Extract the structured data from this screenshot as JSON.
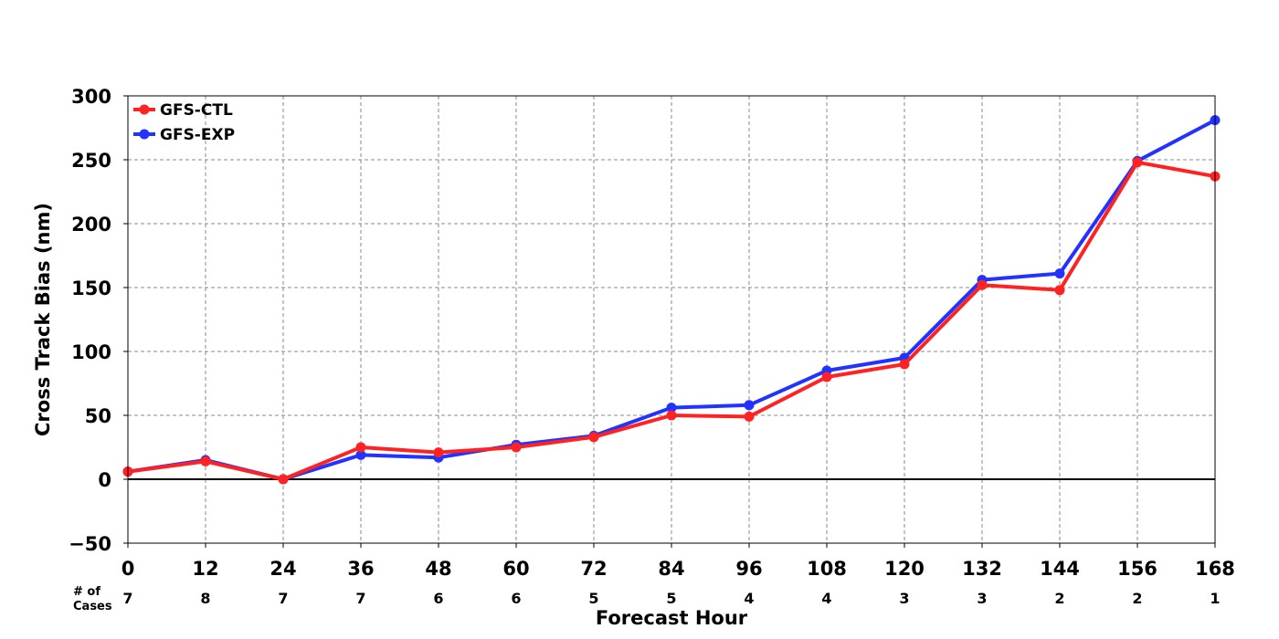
{
  "chart_data": {
    "type": "line",
    "x": [
      0,
      12,
      24,
      36,
      48,
      60,
      72,
      84,
      96,
      108,
      120,
      132,
      144,
      156,
      168
    ],
    "xlabel": "Forecast Hour",
    "ylabel": "Cross Track Bias (nm)",
    "xlim": [
      0,
      168
    ],
    "ylim": [
      -50,
      300
    ],
    "yticks": [
      -50,
      0,
      50,
      100,
      150,
      200,
      250,
      300
    ],
    "ytick_labels": [
      "−50",
      "0",
      "50",
      "100",
      "150",
      "200",
      "250",
      "300"
    ],
    "grid": true,
    "legend_position": "top-left",
    "cases_label_line1": "# of",
    "cases_label_line2": "Cases",
    "cases": [
      7,
      8,
      7,
      7,
      6,
      6,
      5,
      5,
      4,
      4,
      3,
      3,
      2,
      2,
      1
    ],
    "series": [
      {
        "name": "GFS-EXP",
        "color": "#2233ff",
        "values": [
          6,
          15,
          0,
          19,
          17,
          27,
          34,
          56,
          58,
          85,
          95,
          156,
          161,
          249,
          281
        ]
      },
      {
        "name": "GFS-CTL",
        "color": "#ff2222",
        "values": [
          6,
          14,
          0,
          25,
          21,
          25,
          33,
          50,
          49,
          80,
          90,
          152,
          148,
          248,
          237
        ]
      }
    ],
    "legend_order": [
      "GFS-CTL",
      "GFS-EXP"
    ]
  }
}
